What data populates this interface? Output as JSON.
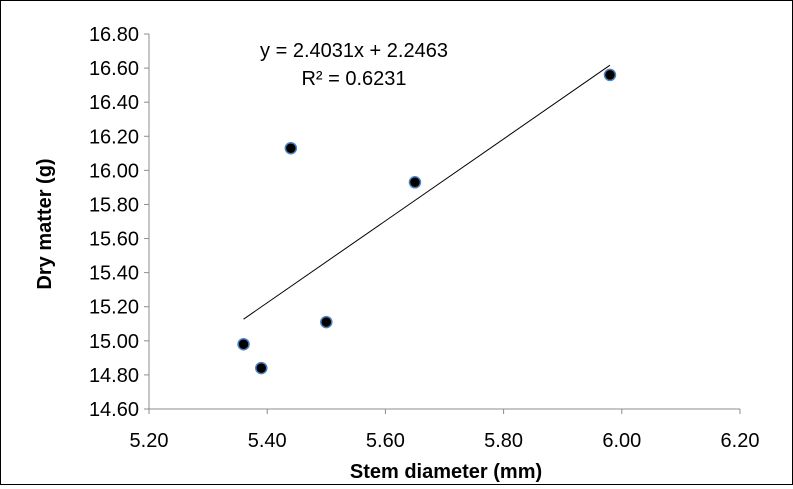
{
  "chart_data": {
    "type": "scatter",
    "title": "",
    "xlabel": "Stem diameter (mm)",
    "ylabel": "Dry matter (g)",
    "xlim": [
      5.2,
      6.2
    ],
    "ylim": [
      14.6,
      16.8
    ],
    "x_ticks": [
      "5.20",
      "5.40",
      "5.60",
      "5.80",
      "6.00",
      "6.20"
    ],
    "y_ticks": [
      "14.60",
      "14.80",
      "15.00",
      "15.20",
      "15.40",
      "15.60",
      "15.80",
      "16.00",
      "16.20",
      "16.40",
      "16.60",
      "16.80"
    ],
    "grid": false,
    "legend": "none",
    "series": [
      {
        "points": [
          {
            "x": 5.36,
            "y": 14.98
          },
          {
            "x": 5.39,
            "y": 14.84
          },
          {
            "x": 5.44,
            "y": 16.13
          },
          {
            "x": 5.5,
            "y": 15.11
          },
          {
            "x": 5.65,
            "y": 15.93
          },
          {
            "x": 5.98,
            "y": 16.56
          }
        ],
        "marker_fill": "#000000",
        "marker_edge": "#4f81bd"
      }
    ],
    "trendline": {
      "type": "linear",
      "slope": 2.4031,
      "intercept": 2.2463,
      "x_range": [
        5.36,
        5.98
      ],
      "color": "#000000",
      "equation_label": "y = 2.4031x + 2.2463",
      "r2_label": "R² = 0.6231"
    }
  }
}
